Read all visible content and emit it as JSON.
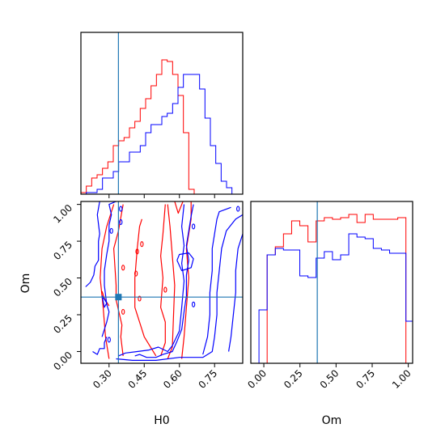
{
  "chart_data": [
    {
      "type": "histogram",
      "panel": "H0 marginal (top-left)",
      "xlim": [
        0.18,
        0.87
      ],
      "ylim": [
        0,
        1.0
      ],
      "truth": 0.34,
      "bin_edges": [
        0.18,
        0.203,
        0.226,
        0.249,
        0.272,
        0.295,
        0.318,
        0.341,
        0.364,
        0.387,
        0.41,
        0.433,
        0.456,
        0.479,
        0.502,
        0.525,
        0.548,
        0.571,
        0.594,
        0.617,
        0.64,
        0.663,
        0.686,
        0.709,
        0.732,
        0.755,
        0.778,
        0.801,
        0.824,
        0.847,
        0.87
      ],
      "series": [
        {
          "color": "#ff0000",
          "counts": [
            0.01,
            0.05,
            0.1,
            0.12,
            0.16,
            0.2,
            0.3,
            0.33,
            0.35,
            0.41,
            0.45,
            0.53,
            0.59,
            0.67,
            0.74,
            0.83,
            0.82,
            0.74,
            0.61,
            0.38,
            0.03,
            0,
            0,
            0,
            0,
            0,
            0,
            0,
            0,
            0
          ]
        },
        {
          "color": "#0000ff",
          "counts": [
            0,
            0.01,
            0.01,
            0.03,
            0.1,
            0.1,
            0.14,
            0.2,
            0.2,
            0.26,
            0.26,
            0.3,
            0.38,
            0.43,
            0.43,
            0.48,
            0.5,
            0.56,
            0.66,
            0.74,
            0.74,
            0.74,
            0.65,
            0.47,
            0.3,
            0.19,
            0.08,
            0.04,
            0,
            0
          ]
        }
      ]
    },
    {
      "type": "contour",
      "panel": "H0 vs Om joint (bottom-left)",
      "xlabel": "H0",
      "ylabel": "Om",
      "xlim": [
        0.18,
        0.87
      ],
      "ylim": [
        -0.08,
        1.02
      ],
      "x_ticks": [
        "0.30",
        "0.45",
        "0.60",
        "0.75"
      ],
      "y_ticks": [
        "0.00",
        "0.25",
        "0.50",
        "0.75",
        "1.00"
      ],
      "truth": [
        0.34,
        0.37
      ],
      "series": [
        {
          "color": "#ff0000",
          "paths": [
            [
              [
                0.3,
                -0.05
              ],
              [
                0.285,
                0.1
              ],
              [
                0.275,
                0.3
              ],
              [
                0.262,
                0.5
              ],
              [
                0.27,
                0.7
              ],
              [
                0.29,
                0.85
              ],
              [
                0.32,
                1.0
              ]
            ],
            [
              [
                0.36,
                -0.03
              ],
              [
                0.35,
                0.1
              ],
              [
                0.355,
                0.18
              ],
              [
                0.33,
                0.35
              ],
              [
                0.33,
                0.45
              ],
              [
                0.32,
                0.7
              ],
              [
                0.34,
                0.82
              ],
              [
                0.36,
                1.0
              ]
            ],
            [
              [
                0.5,
                -0.03
              ],
              [
                0.45,
                0.1
              ],
              [
                0.43,
                0.2
              ],
              [
                0.41,
                0.3
              ],
              [
                0.41,
                0.5
              ],
              [
                0.42,
                0.7
              ],
              [
                0.43,
                0.85
              ],
              [
                0.44,
                0.9
              ]
            ],
            [
              [
                0.52,
                -0.03
              ],
              [
                0.54,
                0.06
              ],
              [
                0.54,
                0.2
              ],
              [
                0.52,
                0.3
              ],
              [
                0.53,
                0.5
              ],
              [
                0.52,
                0.65
              ],
              [
                0.53,
                0.8
              ],
              [
                0.54,
                1.0
              ]
            ],
            [
              [
                0.55,
                -0.05
              ],
              [
                0.57,
                0.03
              ],
              [
                0.575,
                0.25
              ],
              [
                0.58,
                0.45
              ],
              [
                0.57,
                0.65
              ],
              [
                0.56,
                0.85
              ],
              [
                0.55,
                1.0
              ]
            ],
            [
              [
                0.61,
                -0.05
              ],
              [
                0.62,
                0.1
              ],
              [
                0.63,
                0.3
              ],
              [
                0.64,
                0.5
              ],
              [
                0.63,
                0.7
              ],
              [
                0.65,
                0.9
              ],
              [
                0.65,
                1.02
              ]
            ],
            [
              [
                0.27,
                0.41
              ],
              [
                0.28,
                0.36
              ],
              [
                0.3,
                0.31
              ]
            ],
            [
              [
                0.58,
                1.02
              ],
              [
                0.595,
                0.94
              ],
              [
                0.615,
                1.02
              ]
            ]
          ],
          "points": [
            [
              0.415,
              0.53
            ],
            [
              0.42,
              0.68
            ],
            [
              0.44,
              0.73
            ],
            [
              0.36,
              0.27
            ],
            [
              0.36,
              0.57
            ],
            [
              0.54,
              0.42
            ],
            [
              0.43,
              0.36
            ]
          ]
        },
        {
          "color": "#0000ff",
          "paths": [
            [
              [
                0.2,
                0.44
              ],
              [
                0.22,
                0.47
              ],
              [
                0.235,
                0.52
              ],
              [
                0.24,
                0.58
              ],
              [
                0.255,
                0.62
              ],
              [
                0.255,
                0.75
              ],
              [
                0.26,
                0.8
              ],
              [
                0.25,
                0.93
              ],
              [
                0.26,
                1.02
              ]
            ],
            [
              [
                0.27,
                0.1
              ],
              [
                0.29,
                0.2
              ],
              [
                0.3,
                0.27
              ],
              [
                0.29,
                0.32
              ],
              [
                0.28,
                0.45
              ],
              [
                0.28,
                0.55
              ],
              [
                0.29,
                0.66
              ],
              [
                0.3,
                0.75
              ],
              [
                0.3,
                0.86
              ],
              [
                0.31,
                0.93
              ],
              [
                0.3,
                1.0
              ],
              [
                0.33,
                1.02
              ]
            ],
            [
              [
                0.23,
                0.0
              ],
              [
                0.25,
                -0.02
              ],
              [
                0.26,
                0.02
              ],
              [
                0.28,
                0.02
              ],
              [
                0.28,
                0.06
              ],
              [
                0.29,
                0.1
              ]
            ],
            [
              [
                0.41,
                -0.03
              ],
              [
                0.43,
                -0.02
              ],
              [
                0.46,
                -0.04
              ],
              [
                0.5,
                -0.04
              ],
              [
                0.53,
                -0.02
              ],
              [
                0.57,
                0.0
              ],
              [
                0.59,
                0.07
              ],
              [
                0.61,
                0.15
              ],
              [
                0.62,
                0.27
              ],
              [
                0.63,
                0.38
              ],
              [
                0.63,
                0.52
              ],
              [
                0.64,
                0.62
              ],
              [
                0.63,
                0.72
              ],
              [
                0.64,
                0.82
              ],
              [
                0.65,
                0.92
              ],
              [
                0.66,
                1.0
              ]
            ],
            [
              [
                0.34,
                -0.03
              ],
              [
                0.37,
                -0.01
              ],
              [
                0.42,
                0.0
              ],
              [
                0.47,
                0.01
              ],
              [
                0.51,
                0.03
              ],
              [
                0.55,
                0.0
              ],
              [
                0.57,
                0.04
              ],
              [
                0.6,
                0.14
              ],
              [
                0.61,
                0.3
              ],
              [
                0.62,
                0.48
              ],
              [
                0.61,
                0.6
              ],
              [
                0.62,
                0.72
              ],
              [
                0.61,
                0.85
              ],
              [
                0.62,
                1.0
              ]
            ],
            [
              [
                0.33,
                -0.05
              ],
              [
                0.4,
                -0.06
              ],
              [
                0.5,
                -0.06
              ],
              [
                0.6,
                -0.04
              ],
              [
                0.7,
                -0.04
              ],
              [
                0.74,
                0.0
              ],
              [
                0.75,
                0.1
              ],
              [
                0.76,
                0.25
              ],
              [
                0.76,
                0.4
              ],
              [
                0.77,
                0.55
              ],
              [
                0.78,
                0.7
              ],
              [
                0.8,
                0.82
              ],
              [
                0.84,
                0.9
              ],
              [
                0.87,
                0.93
              ]
            ],
            [
              [
                0.7,
                -0.02
              ],
              [
                0.72,
                0.1
              ],
              [
                0.73,
                0.25
              ],
              [
                0.73,
                0.4
              ],
              [
                0.74,
                0.55
              ],
              [
                0.74,
                0.7
              ],
              [
                0.75,
                0.8
              ],
              [
                0.76,
                0.9
              ],
              [
                0.77,
                0.95
              ],
              [
                0.82,
                0.98
              ]
            ],
            [
              [
                0.81,
                0.0
              ],
              [
                0.82,
                0.1
              ],
              [
                0.83,
                0.25
              ],
              [
                0.84,
                0.4
              ],
              [
                0.84,
                0.55
              ],
              [
                0.85,
                0.7
              ],
              [
                0.87,
                0.8
              ]
            ],
            [
              [
                0.59,
                0.62
              ],
              [
                0.61,
                0.55
              ],
              [
                0.65,
                0.57
              ],
              [
                0.66,
                0.63
              ],
              [
                0.64,
                0.67
              ],
              [
                0.6,
                0.66
              ],
              [
                0.59,
                0.62
              ]
            ],
            [
              [
                0.27,
                0.38
              ],
              [
                0.29,
                0.33
              ],
              [
                0.28,
                0.3
              ],
              [
                0.27,
                0.38
              ]
            ]
          ],
          "points": [
            [
              0.35,
              0.97
            ],
            [
              0.35,
              0.88
            ],
            [
              0.31,
              0.82
            ],
            [
              0.66,
              0.85
            ],
            [
              0.66,
              0.32
            ],
            [
              0.85,
              0.97
            ],
            [
              0.3,
              0.08
            ]
          ]
        }
      ]
    },
    {
      "type": "histogram",
      "panel": "Om marginal (bottom-right)",
      "xlabel": "Om",
      "xlim": [
        -0.09,
        1.03
      ],
      "ylim": [
        0,
        1.0
      ],
      "x_ticks": [
        "0.00",
        "0.25",
        "0.50",
        "0.75",
        "1.00"
      ],
      "truth": 0.37,
      "bin_edges": [
        -0.09,
        -0.0335,
        0.023,
        0.0795,
        0.136,
        0.1925,
        0.249,
        0.3055,
        0.362,
        0.4185,
        0.475,
        0.5315,
        0.588,
        0.6445,
        0.701,
        0.7575,
        0.814,
        0.8705,
        0.927,
        0.9835,
        1.03
      ],
      "series": [
        {
          "color": "#ff0000",
          "counts": [
            0,
            0,
            0.67,
            0.72,
            0.8,
            0.88,
            0.85,
            0.75,
            0.88,
            0.9,
            0.89,
            0.9,
            0.92,
            0.87,
            0.92,
            0.89,
            0.89,
            0.89,
            0.9,
            0
          ],
          "note_unused": ""
        },
        {
          "color": "#0000ff",
          "counts": [
            0,
            0.33,
            0.67,
            0.71,
            0.7,
            0.7,
            0.54,
            0.53,
            0.65,
            0.69,
            0.64,
            0.67,
            0.8,
            0.78,
            0.77,
            0.71,
            0.7,
            0.68,
            0.68,
            0.26
          ]
        }
      ]
    }
  ]
}
